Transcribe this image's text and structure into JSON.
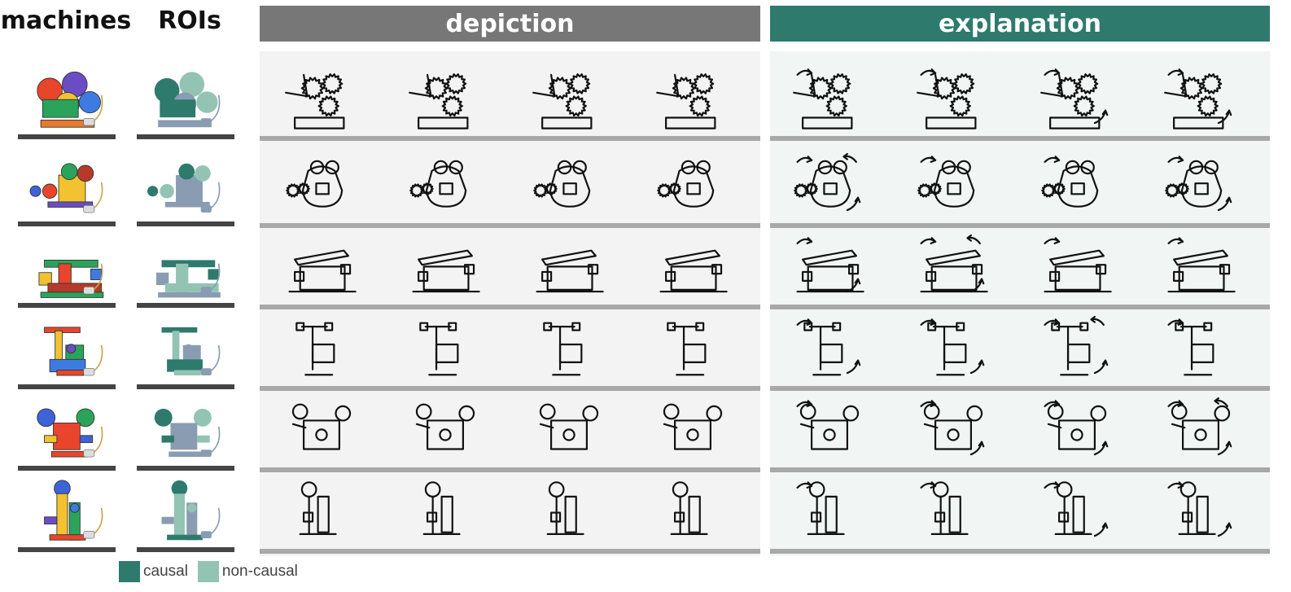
{
  "headers": {
    "machines": "machines",
    "rois": "ROIs",
    "depiction": "depiction",
    "explanation": "explanation"
  },
  "colors": {
    "depiction_banner": "#777777",
    "explanation_banner": "#2e7a6c",
    "depiction_panel": "#f3f3f3",
    "explanation_panel": "#f1f5f4",
    "causal": "#2e7a6c",
    "non_causal": "#93c4b3",
    "roi_base": "#8a9cb2",
    "row_separator": "#444444",
    "panel_separator": "#a8a8a8"
  },
  "legend": [
    {
      "label": "causal",
      "color": "#2e7a6c"
    },
    {
      "label": "non-causal",
      "color": "#93c4b3"
    }
  ],
  "rows": [
    {
      "machine": "machine-1"
    },
    {
      "machine": "machine-2"
    },
    {
      "machine": "machine-3"
    },
    {
      "machine": "machine-4"
    },
    {
      "machine": "machine-5"
    },
    {
      "machine": "machine-6"
    }
  ]
}
